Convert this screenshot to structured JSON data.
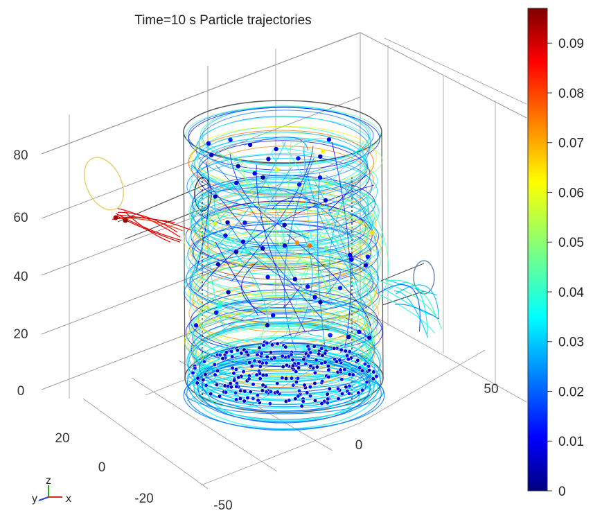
{
  "chart_data": {
    "type": "scatter",
    "title": "Time=10 s  Particle trajectories",
    "axes": {
      "x": {
        "ticks": [
          "-50",
          "0",
          "50"
        ]
      },
      "y": {
        "ticks": [
          "-20",
          "0",
          "20"
        ]
      },
      "z": {
        "ticks": [
          "0",
          "20",
          "40",
          "60",
          "80"
        ]
      }
    },
    "colorbar": {
      "ticks": [
        "0",
        "0.01",
        "0.02",
        "0.03",
        "0.04",
        "0.05",
        "0.06",
        "0.07",
        "0.08",
        "0.09"
      ],
      "range": [
        0,
        0.097
      ],
      "colormap": "rainbow"
    },
    "triad": {
      "labels": [
        "y",
        "z",
        "x"
      ]
    },
    "grid": true,
    "colors": {
      "vessel": "#555555",
      "grid": "#9a9a9a",
      "text": "#333333"
    }
  }
}
